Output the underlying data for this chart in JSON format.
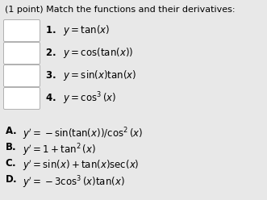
{
  "title": "(1 point) Match the functions and their derivatives:",
  "background_color": "#e8e8e8",
  "box_color": "#ffffff",
  "box_edge_color": "#b0b0b0",
  "functions": [
    "\\mathbf{1.}\\ \\ y = \\tan(x)",
    "\\mathbf{2.}\\ \\ y = \\cos(\\tan(x))",
    "\\mathbf{3.}\\ \\ y = \\sin(x)\\tan(x)",
    "\\mathbf{4.}\\ \\ y = \\cos^3(x)"
  ],
  "derivatives_letter": [
    "\\mathbf{A.}",
    "\\mathbf{B.}",
    "\\mathbf{C.}",
    "\\mathbf{D.}"
  ],
  "derivatives_formula": [
    "y' = -\\sin(\\tan(x))/\\cos^2(x)",
    "y' = 1 + \\tan^2(x)",
    "y' = \\sin(x) + \\tan(x)\\sec(x)",
    "y' = -3\\cos^3(x)\\tan(x)"
  ],
  "title_fontsize": 8.0,
  "func_fontsize": 8.5,
  "deriv_fontsize": 8.5
}
